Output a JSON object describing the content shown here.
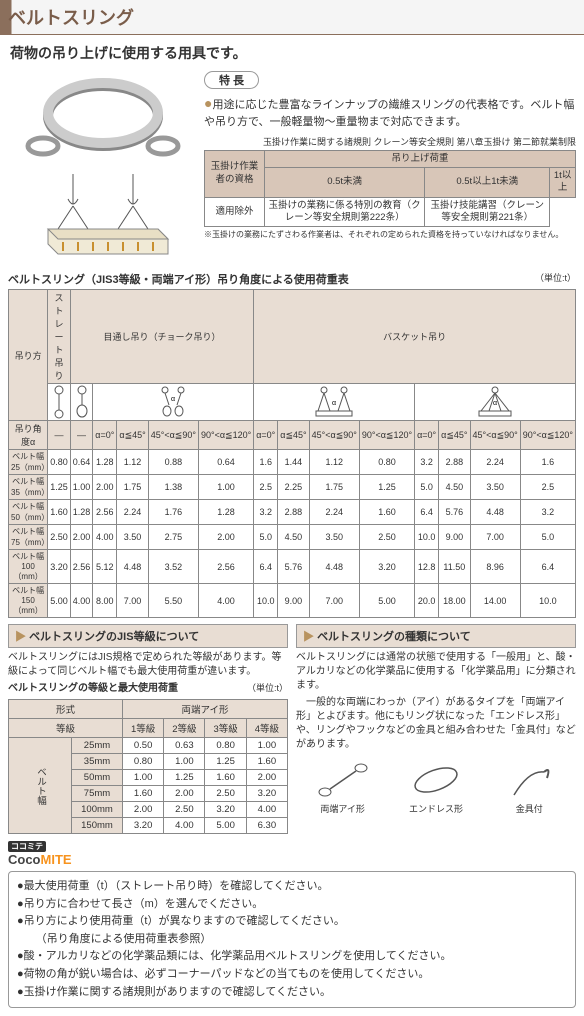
{
  "page_title": "ベルトスリング",
  "subtitle": "荷物の吊り上げに使用する用具です。",
  "features": {
    "label": "特 長",
    "bullet": "●",
    "text": "用途に応じた豊富なラインナップの繊維スリングの代表格です。ベルト幅や吊り方で、一般軽量物～重量物まで対応できます。"
  },
  "reg_note": "玉掛け作業に関する諸規則 クレーン等安全規則 第八章玉掛け 第二節就業制限",
  "qual_table": {
    "top_hdr": "吊り上げ荷重",
    "cols": [
      "0.5t未満",
      "0.5t以上1t未満",
      "1t以上"
    ],
    "row_hdr": "玉掛け作業者の資格",
    "cells": [
      "適用除外",
      "玉掛けの業務に係る特別の教育（クレーン等安全規則第222条）",
      "玉掛け技能講習（クレーン等安全規則第221条）"
    ],
    "note": "※玉掛けの業務にたずさわる作業者は、それぞれの定められた資格を持っていなければなりません。"
  },
  "load_sec": {
    "title": "ベルトスリング（JIS3等級・両端アイ形）吊り角度による使用荷重表",
    "unit": "（単位:t）",
    "method_groups": [
      "ストレート吊り",
      "目通し吊り（チョーク吊り）",
      "バスケット吊り"
    ],
    "row1_label": "吊り方",
    "row2_label": "吊り角度α",
    "angle_cols": [
      "—",
      "—",
      "α=0°",
      "α≦45°",
      "45°<α≦90°",
      "90°<α≦120°",
      "α=0°",
      "α≦45°",
      "45°<α≦90°",
      "90°<α≦120°",
      "α=0°",
      "α≦45°",
      "45°<α≦90°",
      "90°<α≦120°"
    ],
    "rows": [
      {
        "hdr": "ベルト幅25（mm）",
        "v": [
          "0.80",
          "0.64",
          "1.28",
          "1.12",
          "0.88",
          "0.64",
          "1.6",
          "1.44",
          "1.12",
          "0.80",
          "3.2",
          "2.88",
          "2.24",
          "1.6"
        ]
      },
      {
        "hdr": "ベルト幅35（mm）",
        "v": [
          "1.25",
          "1.00",
          "2.00",
          "1.75",
          "1.38",
          "1.00",
          "2.5",
          "2.25",
          "1.75",
          "1.25",
          "5.0",
          "4.50",
          "3.50",
          "2.5"
        ]
      },
      {
        "hdr": "ベルト幅50（mm）",
        "v": [
          "1.60",
          "1.28",
          "2.56",
          "2.24",
          "1.76",
          "1.28",
          "3.2",
          "2.88",
          "2.24",
          "1.60",
          "6.4",
          "5.76",
          "4.48",
          "3.2"
        ]
      },
      {
        "hdr": "ベルト幅75（mm）",
        "v": [
          "2.50",
          "2.00",
          "4.00",
          "3.50",
          "2.75",
          "2.00",
          "5.0",
          "4.50",
          "3.50",
          "2.50",
          "10.0",
          "9.00",
          "7.00",
          "5.0"
        ]
      },
      {
        "hdr": "ベルト幅100（mm）",
        "v": [
          "3.20",
          "2.56",
          "5.12",
          "4.48",
          "3.52",
          "2.56",
          "6.4",
          "5.76",
          "4.48",
          "3.20",
          "12.8",
          "11.50",
          "8.96",
          "6.4"
        ]
      },
      {
        "hdr": "ベルト幅150（mm）",
        "v": [
          "5.00",
          "4.00",
          "8.00",
          "7.00",
          "5.50",
          "4.00",
          "10.0",
          "9.00",
          "7.00",
          "5.00",
          "20.0",
          "18.00",
          "14.00",
          "10.0"
        ]
      }
    ]
  },
  "jis_sec": {
    "hdr": "ベルトスリングのJIS等級について",
    "body": "ベルトスリングにはJIS規格で定められた等級があります。等級によって同じベルト幅でも最大使用荷重が違います。",
    "subhdr": "ベルトスリングの等級と最大使用荷重",
    "unit": "（単位:t）",
    "table": {
      "style_hdr": "形式",
      "type_hdr": "両端アイ形",
      "grade_hdr": "等級",
      "grade_cols": [
        "1等級",
        "2等級",
        "3等級",
        "4等級"
      ],
      "side_hdr": "ベルト幅",
      "rows": [
        {
          "w": "25mm",
          "v": [
            "0.50",
            "0.63",
            "0.80",
            "1.00"
          ]
        },
        {
          "w": "35mm",
          "v": [
            "0.80",
            "1.00",
            "1.25",
            "1.60"
          ]
        },
        {
          "w": "50mm",
          "v": [
            "1.00",
            "1.25",
            "1.60",
            "2.00"
          ]
        },
        {
          "w": "75mm",
          "v": [
            "1.60",
            "2.00",
            "2.50",
            "3.20"
          ]
        },
        {
          "w": "100mm",
          "v": [
            "2.00",
            "2.50",
            "3.20",
            "4.00"
          ]
        },
        {
          "w": "150mm",
          "v": [
            "3.20",
            "4.00",
            "5.00",
            "6.30"
          ]
        }
      ]
    }
  },
  "type_sec": {
    "hdr": "ベルトスリングの種類について",
    "body1": "ベルトスリングには通常の状態で使用する「一般用」と、酸・アルカリなどの化学薬品に使用する「化学薬品用」に分類されます。",
    "body2": "　一般的な両端にわっか（アイ）があるタイプを「両端アイ形」とよびます。他にもリング状になった「エンドレス形」や、リングやフックなどの金具と組み合わせた「金具付」などがあります。",
    "icons": [
      "両端アイ形",
      "エンドレス形",
      "金具付"
    ]
  },
  "logo": {
    "pre": "ココミテ",
    "main1": "Coco",
    "main2": "MITE"
  },
  "notes": [
    "最大使用荷重（t）（ストレート吊り時）を確認してください。",
    "吊り方に合わせて長さ（m）を選んでください。",
    "吊り方により使用荷重（t）が異なりますので確認してください。",
    "（吊り角度による使用荷重表参照）",
    "酸・アルカリなどの化学薬品類には、化学薬品用ベルトスリングを使用してください。",
    "荷物の角が鋭い場合は、必ずコーナーパッドなどの当てものを使用してください。",
    "玉掛け作業に関する諸規則がありますので確認してください。"
  ],
  "colors": {
    "accent": "#8b6f5c",
    "tbl_hdr": "#e8ddd3",
    "tbl_hdr2": "#d8c6b8"
  }
}
